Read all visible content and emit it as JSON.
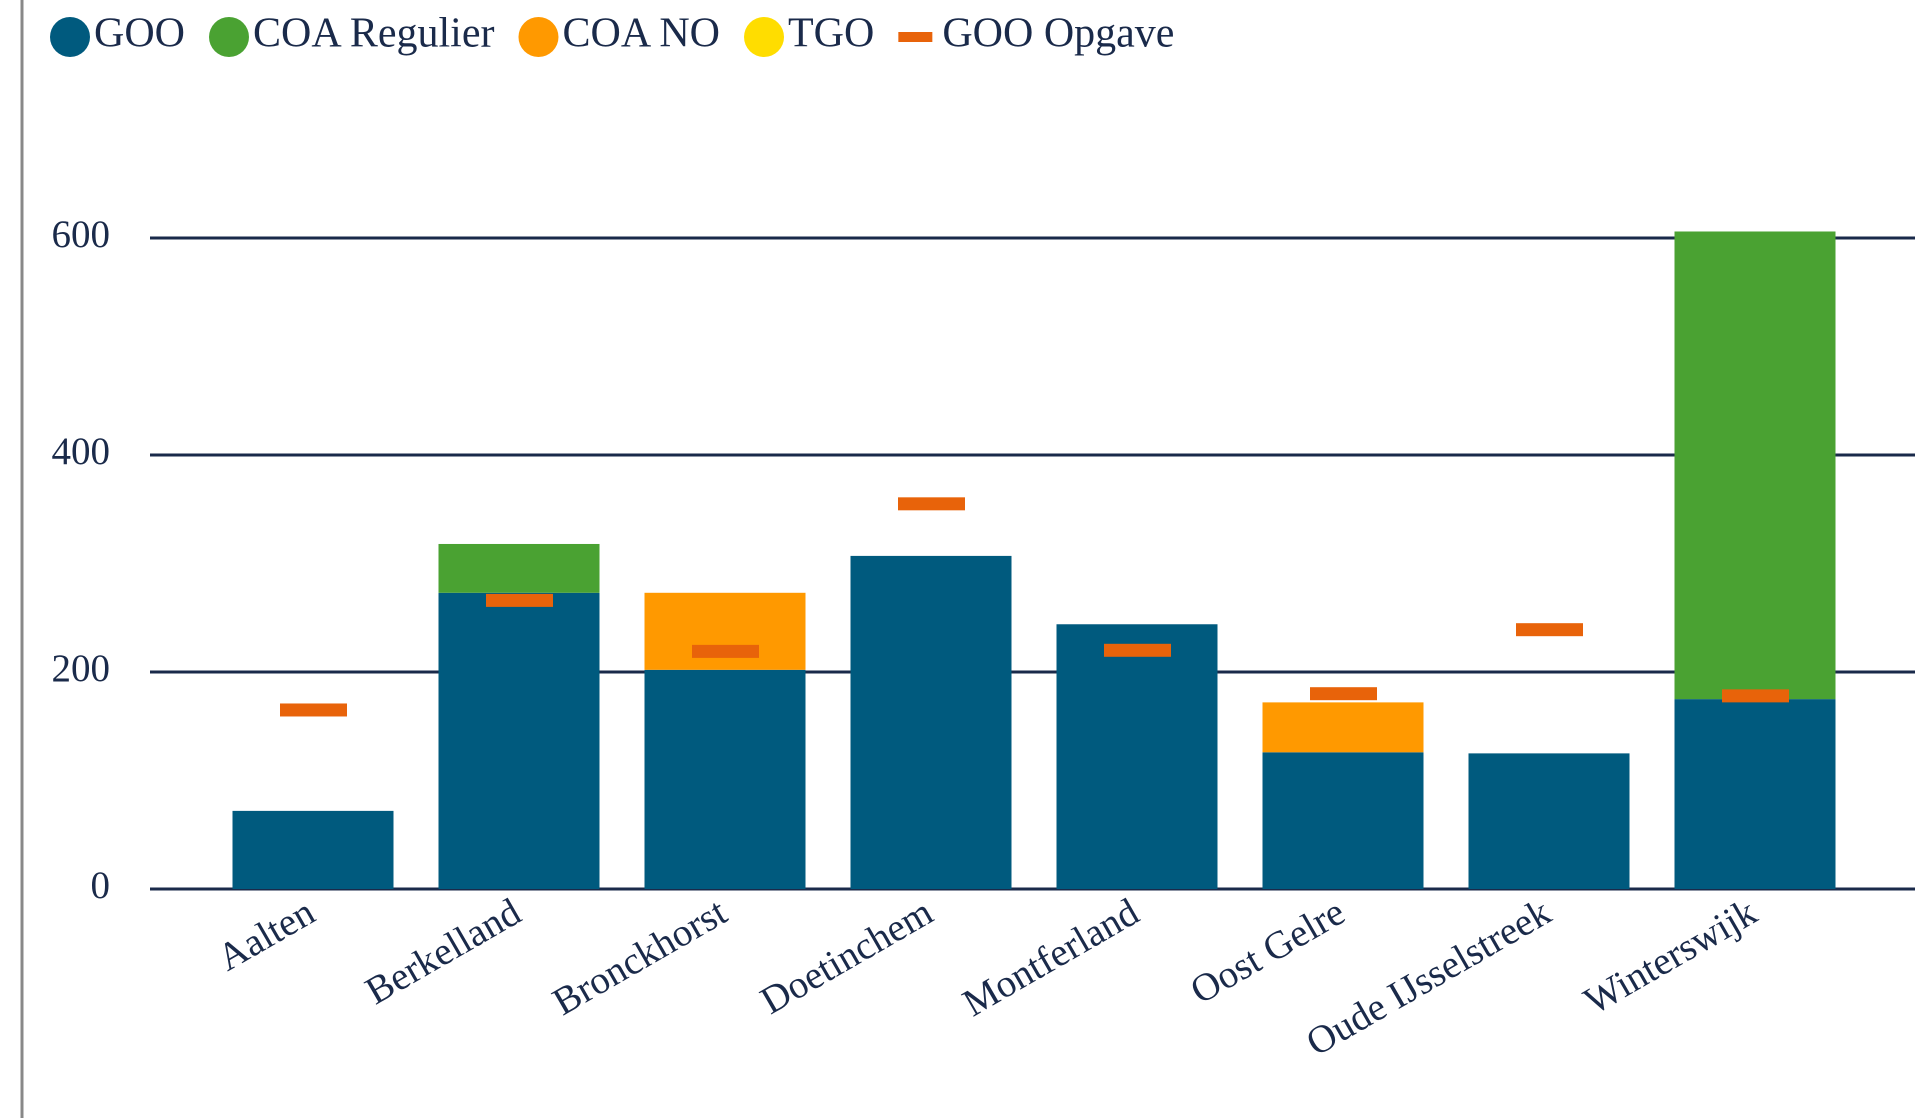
{
  "chart_data": {
    "type": "bar",
    "stacked": true,
    "categories": [
      "Aalten",
      "Berkelland",
      "Bronckhorst",
      "Doetinchem",
      "Montferland",
      "Oost Gelre",
      "Oude IJsselstreek",
      "Winterswijk"
    ],
    "series": [
      {
        "name": "GOO",
        "color": "#005a7e",
        "values": [
          72,
          273,
          202,
          307,
          244,
          126,
          125,
          175
        ]
      },
      {
        "name": "COA Regulier",
        "color": "#4aa232",
        "values": [
          0,
          45,
          0,
          0,
          0,
          0,
          0,
          431
        ]
      },
      {
        "name": "COA NO",
        "color": "#ff9900",
        "values": [
          0,
          0,
          71,
          0,
          0,
          46,
          0,
          0
        ]
      },
      {
        "name": "TGO",
        "color": "#ffdd00",
        "values": [
          0,
          0,
          0,
          0,
          0,
          0,
          0,
          0
        ]
      },
      {
        "name": "GOO Opgave",
        "color": "#e8630a",
        "kind": "marker",
        "values": [
          165,
          266,
          219,
          355,
          220,
          180,
          239,
          178
        ]
      }
    ],
    "ylim": [
      0,
      600
    ],
    "yticks": [
      0,
      200,
      400,
      600
    ],
    "grid": true,
    "legend": "top"
  }
}
